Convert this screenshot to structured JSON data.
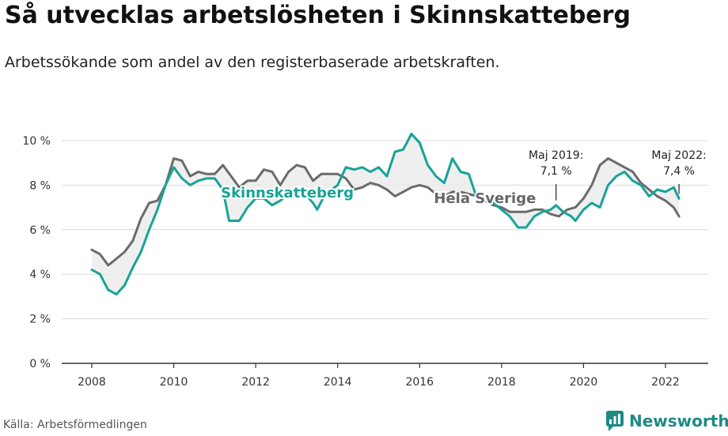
{
  "header": {
    "title": "Så utvecklas arbetslösheten i Skinnskatteberg",
    "subtitle": "Arbetssökande som andel av den registerbaserade arbetskraften."
  },
  "footer": {
    "source": "Källa: Arbetsförmedlingen",
    "logo_text": "Newsworthy"
  },
  "colors": {
    "skinnskatteberg": "#17a398",
    "sverige": "#6b6b6b",
    "fill": "#ececec",
    "logo": "#1e8a84"
  },
  "chart_data": {
    "type": "line",
    "ylim": [
      0,
      10
    ],
    "xlim": [
      2007.6,
      2023.1
    ],
    "y_ticks": [
      0,
      2,
      4,
      6,
      8,
      10
    ],
    "y_tick_labels": [
      "0 %",
      "2 %",
      "4 %",
      "6 %",
      "8 %",
      "10 %"
    ],
    "x_ticks": [
      2008,
      2010,
      2012,
      2014,
      2016,
      2018,
      2020,
      2022
    ],
    "x_tick_labels": [
      "2008",
      "2010",
      "2012",
      "2014",
      "2016",
      "2018",
      "2020",
      "2022"
    ],
    "grid": "horizontal",
    "series": [
      {
        "name": "Skinnskatteberg",
        "points": [
          [
            2008.0,
            4.2
          ],
          [
            2008.2,
            4.0
          ],
          [
            2008.4,
            3.3
          ],
          [
            2008.6,
            3.1
          ],
          [
            2008.8,
            3.5
          ],
          [
            2009.0,
            4.3
          ],
          [
            2009.2,
            5.0
          ],
          [
            2009.4,
            6.0
          ],
          [
            2009.6,
            6.9
          ],
          [
            2009.8,
            8.0
          ],
          [
            2010.0,
            8.8
          ],
          [
            2010.2,
            8.3
          ],
          [
            2010.4,
            8.0
          ],
          [
            2010.6,
            8.2
          ],
          [
            2010.8,
            8.3
          ],
          [
            2011.0,
            8.3
          ],
          [
            2011.2,
            7.8
          ],
          [
            2011.35,
            6.4
          ],
          [
            2011.6,
            6.4
          ],
          [
            2011.8,
            7.0
          ],
          [
            2012.0,
            7.4
          ],
          [
            2012.2,
            7.4
          ],
          [
            2012.4,
            7.1
          ],
          [
            2012.6,
            7.3
          ],
          [
            2012.8,
            7.6
          ],
          [
            2013.0,
            7.8
          ],
          [
            2013.2,
            7.6
          ],
          [
            2013.4,
            7.2
          ],
          [
            2013.5,
            6.9
          ],
          [
            2013.7,
            7.6
          ],
          [
            2014.0,
            8.0
          ],
          [
            2014.2,
            8.8
          ],
          [
            2014.4,
            8.7
          ],
          [
            2014.6,
            8.8
          ],
          [
            2014.8,
            8.6
          ],
          [
            2015.0,
            8.8
          ],
          [
            2015.2,
            8.4
          ],
          [
            2015.4,
            9.5
          ],
          [
            2015.6,
            9.6
          ],
          [
            2015.8,
            10.3
          ],
          [
            2016.0,
            9.9
          ],
          [
            2016.2,
            8.9
          ],
          [
            2016.4,
            8.4
          ],
          [
            2016.6,
            8.1
          ],
          [
            2016.8,
            9.2
          ],
          [
            2017.0,
            8.6
          ],
          [
            2017.2,
            8.5
          ],
          [
            2017.4,
            7.4
          ],
          [
            2017.6,
            7.5
          ],
          [
            2017.8,
            7.2
          ],
          [
            2018.0,
            6.9
          ],
          [
            2018.2,
            6.6
          ],
          [
            2018.4,
            6.1
          ],
          [
            2018.6,
            6.1
          ],
          [
            2018.8,
            6.6
          ],
          [
            2019.0,
            6.8
          ],
          [
            2019.2,
            6.9
          ],
          [
            2019.33,
            7.1
          ],
          [
            2019.5,
            6.8
          ],
          [
            2019.7,
            6.6
          ],
          [
            2019.8,
            6.4
          ],
          [
            2020.0,
            6.9
          ],
          [
            2020.2,
            7.2
          ],
          [
            2020.4,
            7.0
          ],
          [
            2020.6,
            8.0
          ],
          [
            2020.8,
            8.4
          ],
          [
            2021.0,
            8.6
          ],
          [
            2021.2,
            8.2
          ],
          [
            2021.4,
            8.0
          ],
          [
            2021.6,
            7.5
          ],
          [
            2021.8,
            7.8
          ],
          [
            2022.0,
            7.7
          ],
          [
            2022.2,
            7.9
          ],
          [
            2022.33,
            7.4
          ]
        ]
      },
      {
        "name": "Hela Sverige",
        "points": [
          [
            2008.0,
            5.1
          ],
          [
            2008.2,
            4.9
          ],
          [
            2008.4,
            4.4
          ],
          [
            2008.6,
            4.7
          ],
          [
            2008.8,
            5.0
          ],
          [
            2009.0,
            5.5
          ],
          [
            2009.2,
            6.5
          ],
          [
            2009.4,
            7.2
          ],
          [
            2009.6,
            7.3
          ],
          [
            2009.8,
            8.0
          ],
          [
            2010.0,
            9.2
          ],
          [
            2010.2,
            9.1
          ],
          [
            2010.4,
            8.4
          ],
          [
            2010.6,
            8.6
          ],
          [
            2010.8,
            8.5
          ],
          [
            2011.0,
            8.5
          ],
          [
            2011.2,
            8.9
          ],
          [
            2011.4,
            8.4
          ],
          [
            2011.6,
            7.9
          ],
          [
            2011.8,
            8.2
          ],
          [
            2012.0,
            8.2
          ],
          [
            2012.2,
            8.7
          ],
          [
            2012.4,
            8.6
          ],
          [
            2012.6,
            8.0
          ],
          [
            2012.8,
            8.6
          ],
          [
            2013.0,
            8.9
          ],
          [
            2013.2,
            8.8
          ],
          [
            2013.4,
            8.2
          ],
          [
            2013.6,
            8.5
          ],
          [
            2013.8,
            8.5
          ],
          [
            2014.0,
            8.5
          ],
          [
            2014.2,
            8.3
          ],
          [
            2014.4,
            7.8
          ],
          [
            2014.6,
            7.9
          ],
          [
            2014.8,
            8.1
          ],
          [
            2015.0,
            8.0
          ],
          [
            2015.2,
            7.8
          ],
          [
            2015.4,
            7.5
          ],
          [
            2015.6,
            7.7
          ],
          [
            2015.8,
            7.9
          ],
          [
            2016.0,
            8.0
          ],
          [
            2016.2,
            7.9
          ],
          [
            2016.4,
            7.6
          ],
          [
            2016.6,
            7.5
          ],
          [
            2016.8,
            7.7
          ],
          [
            2017.0,
            7.7
          ],
          [
            2017.2,
            7.6
          ],
          [
            2017.4,
            7.5
          ],
          [
            2017.6,
            7.3
          ],
          [
            2017.8,
            7.1
          ],
          [
            2018.0,
            7.0
          ],
          [
            2018.2,
            6.8
          ],
          [
            2018.4,
            6.8
          ],
          [
            2018.6,
            6.8
          ],
          [
            2018.8,
            6.9
          ],
          [
            2019.0,
            6.9
          ],
          [
            2019.2,
            6.7
          ],
          [
            2019.4,
            6.6
          ],
          [
            2019.6,
            6.9
          ],
          [
            2019.8,
            7.0
          ],
          [
            2020.0,
            7.4
          ],
          [
            2020.2,
            8.0
          ],
          [
            2020.4,
            8.9
          ],
          [
            2020.6,
            9.2
          ],
          [
            2020.8,
            9.0
          ],
          [
            2021.0,
            8.8
          ],
          [
            2021.2,
            8.6
          ],
          [
            2021.4,
            8.1
          ],
          [
            2021.6,
            7.8
          ],
          [
            2021.8,
            7.5
          ],
          [
            2022.0,
            7.3
          ],
          [
            2022.2,
            7.0
          ],
          [
            2022.33,
            6.6
          ]
        ]
      }
    ],
    "annotations": [
      {
        "x": 2019.33,
        "y": 7.1,
        "lines": [
          "Maj 2019:",
          "7,1 %"
        ]
      },
      {
        "x": 2022.33,
        "y": 7.4,
        "lines": [
          "Maj 2022:",
          "7,4 %"
        ]
      }
    ]
  }
}
